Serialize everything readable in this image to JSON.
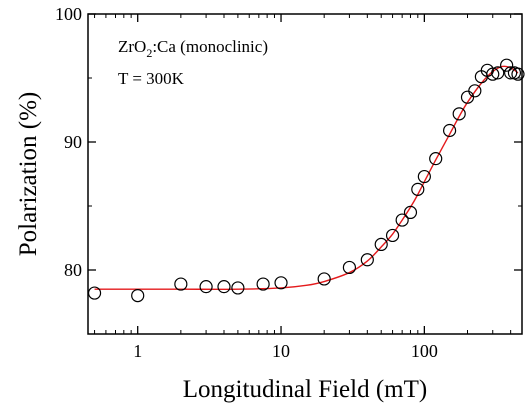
{
  "chart_data": {
    "type": "scatter",
    "xscale": "log",
    "xlabel": "Longitudinal Field (mT)",
    "ylabel": "Polarization (%)",
    "xlim": [
      0.45,
      480
    ],
    "ylim": [
      75,
      100
    ],
    "x_ticks": [
      {
        "value": 1,
        "label": "1"
      },
      {
        "value": 10,
        "label": "10"
      },
      {
        "value": 100,
        "label": "100"
      }
    ],
    "y_ticks": [
      {
        "value": 80,
        "label": "80"
      },
      {
        "value": 90,
        "label": "90"
      },
      {
        "value": 100,
        "label": "100"
      }
    ],
    "annotations": {
      "sample_prefix": "ZrO",
      "sample_subscript": "2",
      "sample_suffix": ":Ca (monoclinic)",
      "temperature": "T = 300K"
    },
    "series": [
      {
        "style": "open-circle",
        "color": "#000000",
        "x": [
          0.5,
          1,
          2,
          3,
          4,
          5,
          7.5,
          10,
          20,
          30,
          40,
          50,
          60,
          70,
          80,
          90,
          100,
          120,
          150,
          175,
          200,
          225,
          250,
          275,
          300,
          325,
          375,
          400,
          425,
          450
        ],
        "y": [
          78.2,
          78.0,
          78.9,
          78.7,
          78.7,
          78.6,
          78.9,
          79.0,
          79.3,
          80.2,
          80.8,
          82.0,
          82.7,
          83.9,
          84.5,
          86.3,
          87.3,
          88.7,
          90.9,
          92.2,
          93.5,
          94.0,
          95.1,
          95.6,
          95.3,
          95.4,
          96.0,
          95.4,
          95.4,
          95.3
        ]
      },
      {
        "style": "fit-line",
        "color": "#e41a1c",
        "x": [
          0.5,
          1,
          2,
          5,
          10,
          15,
          20,
          30,
          40,
          50,
          60,
          70,
          80,
          90,
          100,
          120,
          150,
          175,
          200,
          250,
          300,
          350,
          400,
          450
        ],
        "y": [
          78.5,
          78.5,
          78.5,
          78.5,
          78.6,
          78.8,
          79.1,
          79.8,
          80.7,
          81.8,
          82.8,
          83.9,
          84.9,
          85.9,
          86.9,
          88.6,
          90.6,
          92.0,
          93.1,
          94.6,
          95.5,
          95.9,
          95.8,
          95.4
        ]
      }
    ]
  }
}
